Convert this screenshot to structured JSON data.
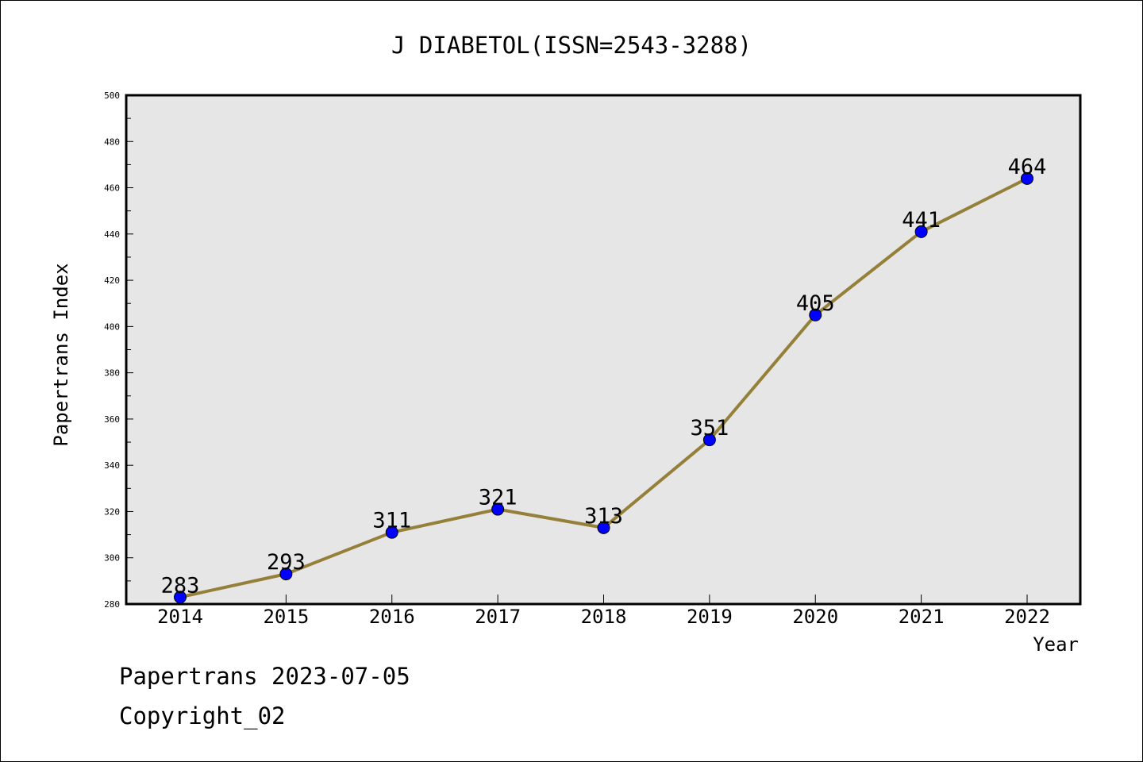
{
  "chart_data": {
    "type": "line",
    "title": "J DIABETOL(ISSN=2543-3288)",
    "xlabel": "Year",
    "ylabel": "Papertrans Index",
    "categories": [
      "2014",
      "2015",
      "2016",
      "2017",
      "2018",
      "2019",
      "2020",
      "2021",
      "2022"
    ],
    "series": [
      {
        "values": [
          283,
          293,
          311,
          321,
          313,
          351,
          405,
          441,
          464
        ]
      }
    ],
    "data_labels": [
      "283",
      "293",
      "311",
      "321",
      "313",
      "351",
      "405",
      "441",
      "464"
    ],
    "ylim": [
      280,
      500
    ],
    "y_ticks": [
      "280",
      "300",
      "320",
      "340",
      "360",
      "380",
      "400",
      "420",
      "440",
      "460",
      "480",
      "500"
    ],
    "grid": false,
    "line_color": "#958039",
    "marker_color": "#0000ff",
    "plot_background": "#e6e6e6"
  },
  "footer": {
    "source": "Papertrans 2023-07-05",
    "copyright": "Copyright_02"
  }
}
